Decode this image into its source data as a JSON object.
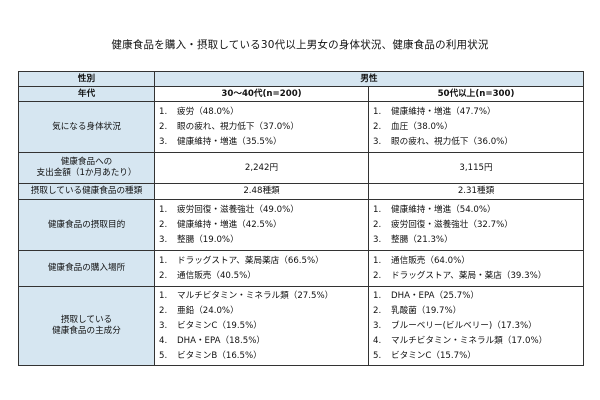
{
  "title": "健康食品を購入・摂取している30代以上男女の身体状況、健康食品の利用状況",
  "header": {
    "sex_label": "性別",
    "sex_value": "男性",
    "age_label": "年代",
    "group_a": "30～40代(n=200)",
    "group_b": "50代以上(n=300)"
  },
  "rows": [
    {
      "label": [
        "気になる身体状況"
      ],
      "a": [
        {
          "n": "1.",
          "t": "疲労（48.0%）"
        },
        {
          "n": "2.",
          "t": "眼の疲れ、視力低下（37.0%）"
        },
        {
          "n": "3.",
          "t": "健康維持・増進（35.5%）"
        }
      ],
      "b": [
        {
          "n": "1.",
          "t": "健康維持・増進（47.7%）"
        },
        {
          "n": "2.",
          "t": "血圧（38.0%）"
        },
        {
          "n": "3.",
          "t": "眼の疲れ、視力低下（36.0%）"
        }
      ]
    },
    {
      "label": [
        "健康食品への",
        "支出金額（1か月あたり）"
      ],
      "a_value": "2,242円",
      "b_value": "3,115円"
    },
    {
      "label": [
        "摂取している健康食品の種類"
      ],
      "a_value": "2.48種類",
      "b_value": "2.31種類"
    },
    {
      "label": [
        "健康食品の摂取目的"
      ],
      "a": [
        {
          "n": "1.",
          "t": "疲労回復・滋養強壮（49.0%）"
        },
        {
          "n": "2.",
          "t": "健康維持・増進（42.5%）"
        },
        {
          "n": "3.",
          "t": "整腸（19.0%）"
        }
      ],
      "b": [
        {
          "n": "1.",
          "t": "健康維持・増進（54.0%）"
        },
        {
          "n": "2.",
          "t": "疲労回復・滋養強壮（32.7%）"
        },
        {
          "n": "3.",
          "t": "整腸（21.3%）"
        }
      ]
    },
    {
      "label": [
        "健康食品の購入場所"
      ],
      "a": [
        {
          "n": "1.",
          "t": "ドラッグストア、薬局薬店（66.5%）"
        },
        {
          "n": "2.",
          "t": "通信販売（40.5%）"
        }
      ],
      "b": [
        {
          "n": "1.",
          "t": "通信販売（64.0%）"
        },
        {
          "n": "2.",
          "t": "ドラッグストア、薬局・薬店（39.3%）"
        }
      ]
    },
    {
      "label": [
        "摂取している",
        "健康食品の主成分"
      ],
      "a": [
        {
          "n": "1.",
          "t": "マルチビタミン・ミネラル類（27.5%）"
        },
        {
          "n": "2.",
          "t": "亜鉛（24.0%）"
        },
        {
          "n": "3.",
          "t": "ビタミンC（19.5%）"
        },
        {
          "n": "4.",
          "t": "DHA・EPA（18.5%）"
        },
        {
          "n": "5.",
          "t": "ビタミンB（16.5%）"
        }
      ],
      "b": [
        {
          "n": "1.",
          "t": "DHA・EPA（25.7%）"
        },
        {
          "n": "2.",
          "t": "乳酸菌（19.7%）"
        },
        {
          "n": "3.",
          "t": "ブルーベリー(ビルベリー)（17.3%）"
        },
        {
          "n": "4.",
          "t": "マルチビタミン・ミネラル類（17.0%）"
        },
        {
          "n": "5.",
          "t": "ビタミンC（15.7%）"
        }
      ]
    }
  ]
}
